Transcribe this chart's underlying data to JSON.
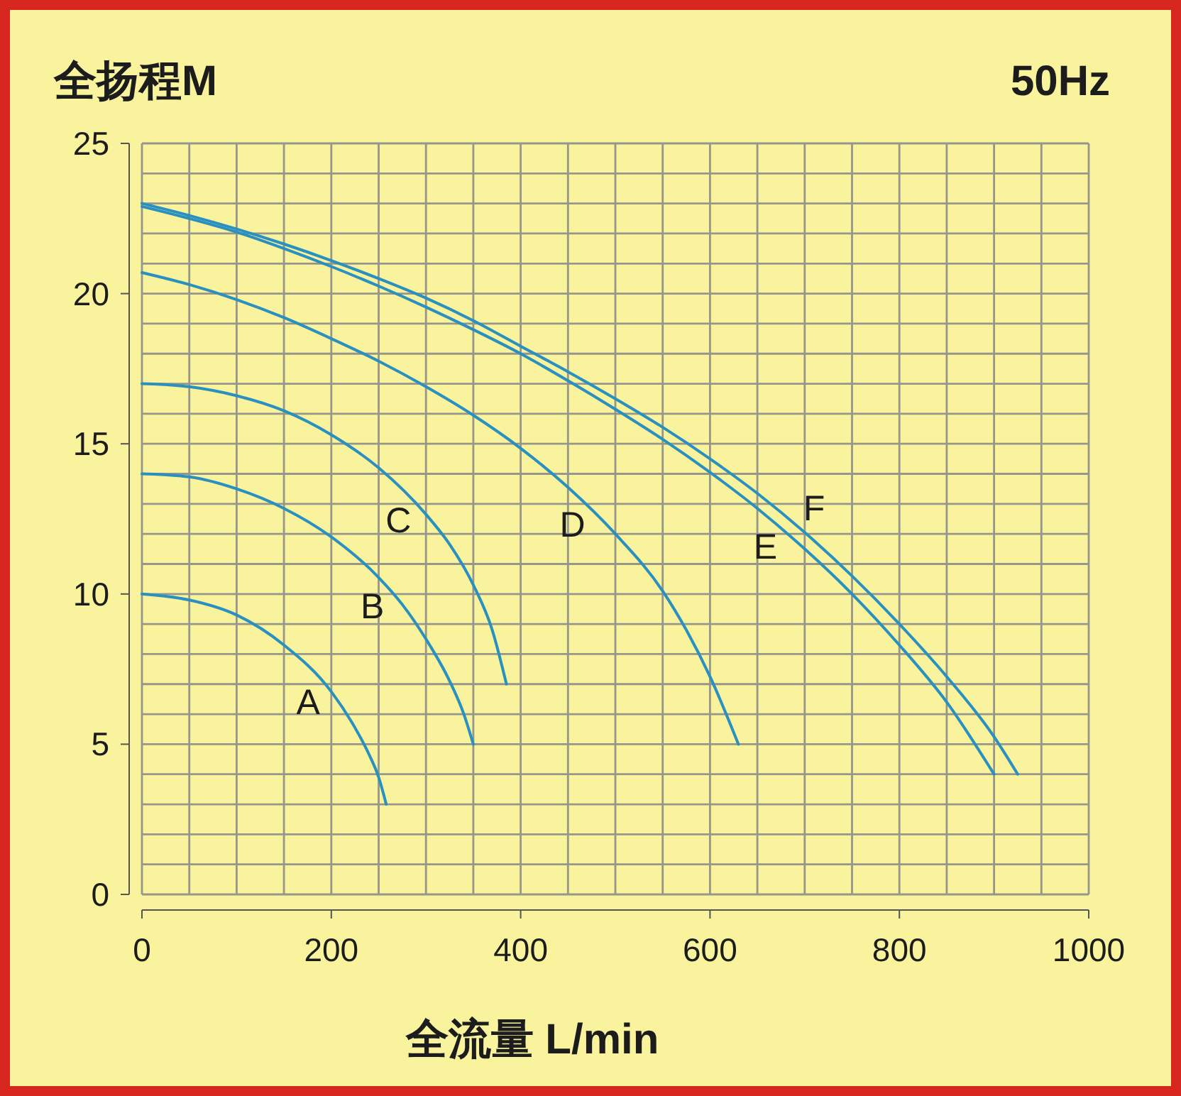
{
  "chart_data": {
    "type": "line",
    "ylabel": "全扬程M",
    "xlabel": "全流量 L/min",
    "annotations": [
      "50Hz"
    ],
    "xlim": [
      0,
      1000
    ],
    "ylim": [
      0,
      25
    ],
    "xticks": [
      0,
      {
        "value": 50,
        "label": null
      },
      {
        "value": 100,
        "label": null
      },
      {
        "value": 150,
        "label": null
      },
      200,
      {
        "value": 250,
        "label": null
      },
      {
        "value": 300,
        "label": null
      },
      {
        "value": 350,
        "label": null
      },
      400,
      {
        "value": 450,
        "label": null
      },
      {
        "value": 500,
        "label": null
      },
      {
        "value": 550,
        "label": null
      },
      600,
      {
        "value": 650,
        "label": null
      },
      {
        "value": 700,
        "label": null
      },
      {
        "value": 750,
        "label": null
      },
      800,
      {
        "value": 850,
        "label": null
      },
      {
        "value": 900,
        "label": null
      },
      {
        "value": 950,
        "label": null
      },
      1000
    ],
    "yticks": [
      0,
      {
        "value": 1,
        "label": null
      },
      {
        "value": 2,
        "label": null
      },
      {
        "value": 3,
        "label": null
      },
      {
        "value": 4,
        "label": null
      },
      5,
      {
        "value": 6,
        "label": null
      },
      {
        "value": 7,
        "label": null
      },
      {
        "value": 8,
        "label": null
      },
      {
        "value": 9,
        "label": null
      },
      10,
      {
        "value": 11,
        "label": null
      },
      {
        "value": 12,
        "label": null
      },
      {
        "value": 13,
        "label": null
      },
      {
        "value": 14,
        "label": null
      },
      15,
      {
        "value": 16,
        "label": null
      },
      {
        "value": 17,
        "label": null
      },
      {
        "value": 18,
        "label": null
      },
      {
        "value": 19,
        "label": null
      },
      20,
      {
        "value": 21,
        "label": null
      },
      {
        "value": 22,
        "label": null
      },
      {
        "value": 23,
        "label": null
      },
      {
        "value": 24,
        "label": null
      },
      25
    ],
    "grid": true,
    "line_style": "solid",
    "series": [
      {
        "name": "A",
        "color": "#2a90c0",
        "x": [
          0,
          50,
          100,
          150,
          200,
          225,
          240,
          250,
          258
        ],
        "values": [
          10,
          9.8,
          9.3,
          8.3,
          6.75,
          5.55,
          4.65,
          3.9,
          3
        ]
      },
      {
        "name": "B",
        "color": "#2a90c0",
        "x": [
          0,
          50,
          100,
          150,
          200,
          250,
          275,
          300,
          325,
          340,
          350
        ],
        "values": [
          14,
          13.9,
          13.5,
          12.85,
          11.9,
          10.55,
          9.65,
          8.5,
          7.1,
          6,
          5
        ]
      },
      {
        "name": "C",
        "color": "#2a90c0",
        "x": [
          0,
          50,
          100,
          150,
          200,
          250,
          300,
          325,
          350,
          370,
          385
        ],
        "values": [
          17,
          16.9,
          16.6,
          16.1,
          15.3,
          14.2,
          12.65,
          11.65,
          10.3,
          8.8,
          7
        ]
      },
      {
        "name": "D",
        "color": "#2a90c0",
        "x": [
          0,
          50,
          100,
          150,
          200,
          250,
          300,
          350,
          400,
          450,
          500,
          550,
          575,
          600,
          630
        ],
        "values": [
          20.7,
          20.3,
          19.8,
          19.2,
          18.5,
          17.75,
          16.9,
          15.95,
          14.85,
          13.55,
          12,
          10.1,
          8.8,
          7.25,
          5
        ]
      },
      {
        "name": "E",
        "color": "#2a90c0",
        "x": [
          0,
          50,
          100,
          150,
          200,
          250,
          300,
          350,
          400,
          450,
          500,
          550,
          600,
          650,
          700,
          750,
          800,
          850,
          900
        ],
        "values": [
          22.9,
          22.5,
          22.05,
          21.5,
          20.9,
          20.25,
          19.55,
          18.8,
          18,
          17.1,
          16.15,
          15.15,
          14.05,
          12.85,
          11.5,
          10,
          8.3,
          6.4,
          4
        ]
      },
      {
        "name": "F",
        "color": "#2a90c0",
        "x": [
          0,
          50,
          100,
          150,
          200,
          250,
          300,
          350,
          400,
          450,
          500,
          550,
          600,
          650,
          700,
          750,
          800,
          850,
          900,
          925
        ],
        "values": [
          23,
          22.6,
          22.15,
          21.65,
          21.1,
          20.5,
          19.85,
          19.1,
          18.25,
          17.4,
          16.5,
          15.55,
          14.5,
          13.35,
          12.05,
          10.6,
          9,
          7.25,
          5.25,
          4
        ]
      }
    ]
  }
}
